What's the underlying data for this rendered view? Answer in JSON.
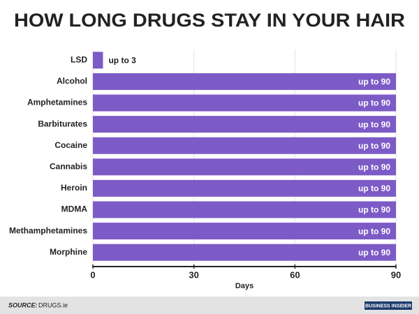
{
  "chart_data": {
    "type": "barh",
    "title": "HOW LONG DRUGS STAY IN YOUR HAIR",
    "categories": [
      "LSD",
      "Alcohol",
      "Amphetamines",
      "Barbiturates",
      "Cocaine",
      "Cannabis",
      "Heroin",
      "MDMA",
      "Methamphetamines",
      "Morphine"
    ],
    "values": [
      3,
      90,
      90,
      90,
      90,
      90,
      90,
      90,
      90,
      90
    ],
    "value_labels": [
      "up to 3",
      "up to 90",
      "up to 90",
      "up to 90",
      "up to 90",
      "up to 90",
      "up to 90",
      "up to 90",
      "up to 90",
      "up to 90"
    ],
    "color": "#7d5bc6",
    "xlim": [
      0,
      90
    ],
    "xticks": [
      0,
      30,
      60,
      90
    ],
    "grid": true,
    "xlabel": "Days",
    "source_label": "SOURCE:",
    "source": "DRUGS.ie",
    "brand": "BUSINESS INSIDER"
  }
}
